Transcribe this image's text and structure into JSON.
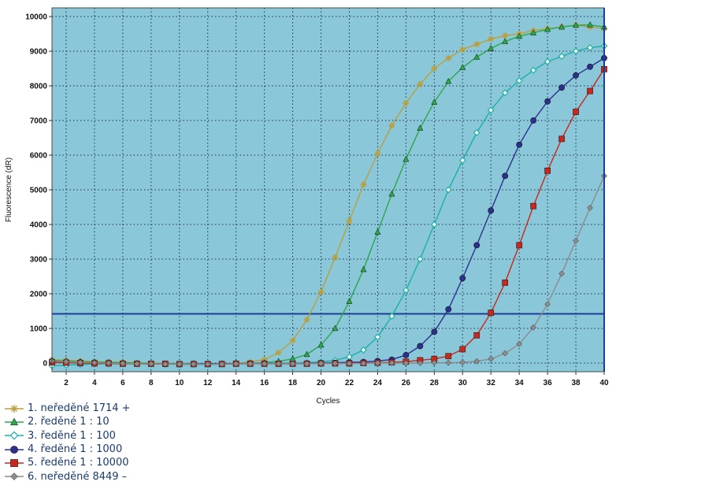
{
  "chart_data": {
    "type": "line",
    "xlabel": "Cycles",
    "ylabel": "Fluorescence (dR)",
    "xlim": [
      1,
      40
    ],
    "ylim": [
      -250,
      10250
    ],
    "xticks": [
      2,
      4,
      6,
      8,
      10,
      12,
      14,
      16,
      18,
      20,
      22,
      24,
      26,
      28,
      30,
      32,
      34,
      36,
      38,
      40
    ],
    "yticks": [
      0,
      1000,
      2000,
      3000,
      4000,
      5000,
      6000,
      7000,
      8000,
      9000,
      10000
    ],
    "grid": true,
    "background_color": "#8ac7d8",
    "threshold": {
      "value": 1420,
      "color": "#1c3f94"
    },
    "legend_position": "bottom-left",
    "x": [
      1,
      2,
      3,
      4,
      5,
      6,
      7,
      8,
      9,
      10,
      11,
      12,
      13,
      14,
      15,
      16,
      17,
      18,
      19,
      20,
      21,
      22,
      23,
      24,
      25,
      26,
      27,
      28,
      29,
      30,
      31,
      32,
      33,
      34,
      35,
      36,
      37,
      38,
      39,
      40
    ],
    "series": [
      {
        "name": "1. neředěné 1714 +",
        "color": "#b8a040",
        "marker": "star",
        "values": [
          100,
          80,
          60,
          40,
          30,
          20,
          10,
          0,
          -10,
          -20,
          -20,
          -30,
          -20,
          -10,
          30,
          100,
          300,
          650,
          1250,
          2050,
          3050,
          4100,
          5150,
          6050,
          6850,
          7500,
          8050,
          8500,
          8800,
          9050,
          9200,
          9350,
          9450,
          9500,
          9600,
          9650,
          9700,
          9750,
          9700,
          9650
        ]
      },
      {
        "name": "2. ředěné 1 : 10",
        "color": "#2aa84a",
        "marker": "triangle",
        "values": [
          80,
          60,
          40,
          30,
          20,
          10,
          0,
          -10,
          -20,
          -20,
          -30,
          -40,
          -30,
          -20,
          -10,
          10,
          50,
          120,
          250,
          520,
          1000,
          1780,
          2700,
          3780,
          4880,
          5880,
          6780,
          7530,
          8130,
          8530,
          8830,
          9080,
          9280,
          9430,
          9530,
          9630,
          9700,
          9750,
          9760,
          9700
        ]
      },
      {
        "name": "3. ředěné 1 : 100",
        "color": "#1ab0a8",
        "marker": "diamond-open",
        "values": [
          -80,
          -60,
          -40,
          -30,
          -20,
          -20,
          -20,
          -30,
          -30,
          -40,
          -40,
          -40,
          -30,
          -30,
          -20,
          -10,
          0,
          0,
          10,
          30,
          80,
          180,
          380,
          750,
          1350,
          2100,
          3000,
          4000,
          5000,
          5850,
          6650,
          7300,
          7800,
          8150,
          8450,
          8700,
          8850,
          9000,
          9100,
          9150
        ]
      },
      {
        "name": "4. ředěné 1 : 1000",
        "color": "#2e3090",
        "marker": "circle",
        "values": [
          50,
          30,
          20,
          10,
          0,
          -10,
          -20,
          -20,
          -30,
          -30,
          -20,
          -20,
          -20,
          -10,
          -10,
          -10,
          -20,
          -20,
          -10,
          0,
          10,
          20,
          30,
          60,
          100,
          230,
          490,
          900,
          1550,
          2450,
          3400,
          4400,
          5400,
          6300,
          7000,
          7550,
          7950,
          8300,
          8550,
          8800
        ]
      },
      {
        "name": "5. ředěné 1 : 10000",
        "color": "#c8281e",
        "marker": "square",
        "values": [
          20,
          10,
          0,
          -10,
          -10,
          -20,
          -20,
          -20,
          -20,
          -30,
          -30,
          -30,
          -30,
          -20,
          -20,
          -20,
          -20,
          -20,
          -20,
          -10,
          -10,
          -10,
          0,
          10,
          20,
          40,
          80,
          120,
          200,
          400,
          800,
          1450,
          2320,
          3400,
          4530,
          5550,
          6470,
          7250,
          7850,
          8480
        ]
      },
      {
        "name": "6. neředěné 8449 –",
        "color": "#8c8c8c",
        "marker": "diamond",
        "values": [
          60,
          40,
          20,
          10,
          0,
          -10,
          -20,
          -20,
          -30,
          -30,
          -30,
          -30,
          -30,
          -20,
          -20,
          -20,
          -20,
          -20,
          -20,
          -10,
          -10,
          -10,
          -10,
          0,
          0,
          0,
          0,
          10,
          10,
          20,
          50,
          120,
          280,
          550,
          1030,
          1700,
          2580,
          3530,
          4480,
          5400
        ]
      }
    ]
  }
}
